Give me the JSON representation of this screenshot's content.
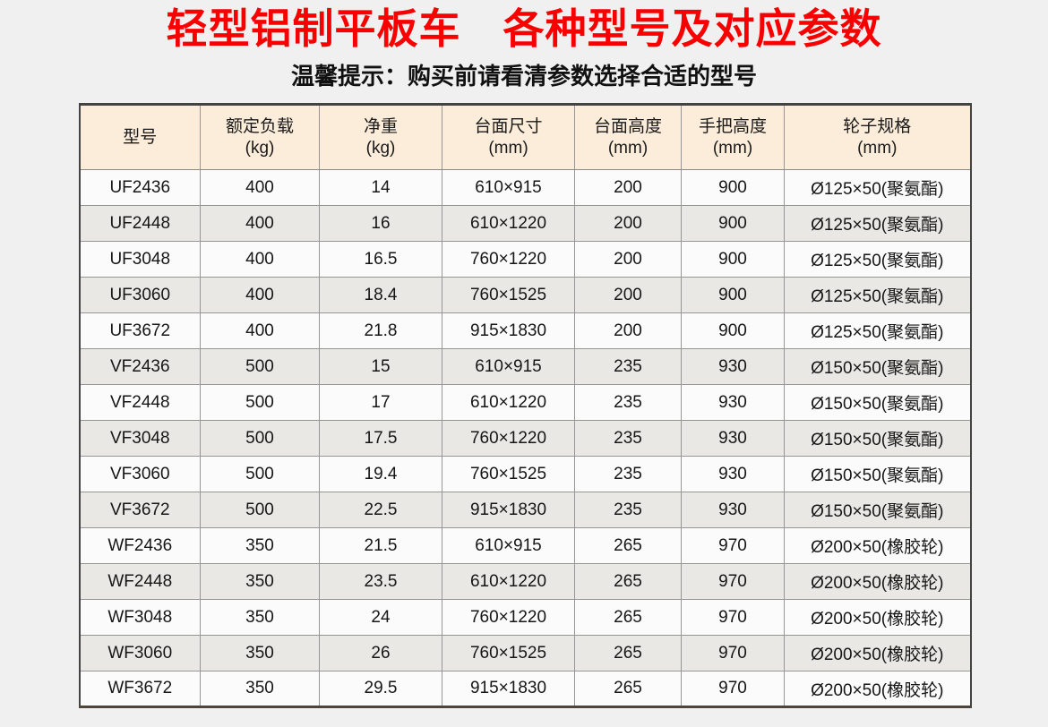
{
  "page": {
    "title": "轻型铝制平板车　各种型号及对应参数",
    "subtitle": "温馨提示：购买前请看清参数选择合适的型号",
    "title_color": "#f80000",
    "background_color": "#f0f0f0"
  },
  "table": {
    "header_bg": "#fcecda",
    "columns": [
      {
        "label": "型号",
        "unit": ""
      },
      {
        "label": "额定负载",
        "unit": "(kg)"
      },
      {
        "label": "净重",
        "unit": "(kg)"
      },
      {
        "label": "台面尺寸",
        "unit": "(mm)"
      },
      {
        "label": "台面高度",
        "unit": "(mm)"
      },
      {
        "label": "手把高度",
        "unit": "(mm)"
      },
      {
        "label": "轮子规格",
        "unit": "(mm)"
      }
    ],
    "rows": [
      [
        "UF2436",
        "400",
        "14",
        "610×915",
        "200",
        "900",
        "Ø125×50(聚氨酯)"
      ],
      [
        "UF2448",
        "400",
        "16",
        "610×1220",
        "200",
        "900",
        "Ø125×50(聚氨酯)"
      ],
      [
        "UF3048",
        "400",
        "16.5",
        "760×1220",
        "200",
        "900",
        "Ø125×50(聚氨酯)"
      ],
      [
        "UF3060",
        "400",
        "18.4",
        "760×1525",
        "200",
        "900",
        "Ø125×50(聚氨酯)"
      ],
      [
        "UF3672",
        "400",
        "21.8",
        "915×1830",
        "200",
        "900",
        "Ø125×50(聚氨酯)"
      ],
      [
        "VF2436",
        "500",
        "15",
        "610×915",
        "235",
        "930",
        "Ø150×50(聚氨酯)"
      ],
      [
        "VF2448",
        "500",
        "17",
        "610×1220",
        "235",
        "930",
        "Ø150×50(聚氨酯)"
      ],
      [
        "VF3048",
        "500",
        "17.5",
        "760×1220",
        "235",
        "930",
        "Ø150×50(聚氨酯)"
      ],
      [
        "VF3060",
        "500",
        "19.4",
        "760×1525",
        "235",
        "930",
        "Ø150×50(聚氨酯)"
      ],
      [
        "VF3672",
        "500",
        "22.5",
        "915×1830",
        "235",
        "930",
        "Ø150×50(聚氨酯)"
      ],
      [
        "WF2436",
        "350",
        "21.5",
        "610×915",
        "265",
        "970",
        "Ø200×50(橡胶轮)"
      ],
      [
        "WF2448",
        "350",
        "23.5",
        "610×1220",
        "265",
        "970",
        "Ø200×50(橡胶轮)"
      ],
      [
        "WF3048",
        "350",
        "24",
        "760×1220",
        "265",
        "970",
        "Ø200×50(橡胶轮)"
      ],
      [
        "WF3060",
        "350",
        "26",
        "760×1525",
        "265",
        "970",
        "Ø200×50(橡胶轮)"
      ],
      [
        "WF3672",
        "350",
        "29.5",
        "915×1830",
        "265",
        "970",
        "Ø200×50(橡胶轮)"
      ]
    ]
  }
}
